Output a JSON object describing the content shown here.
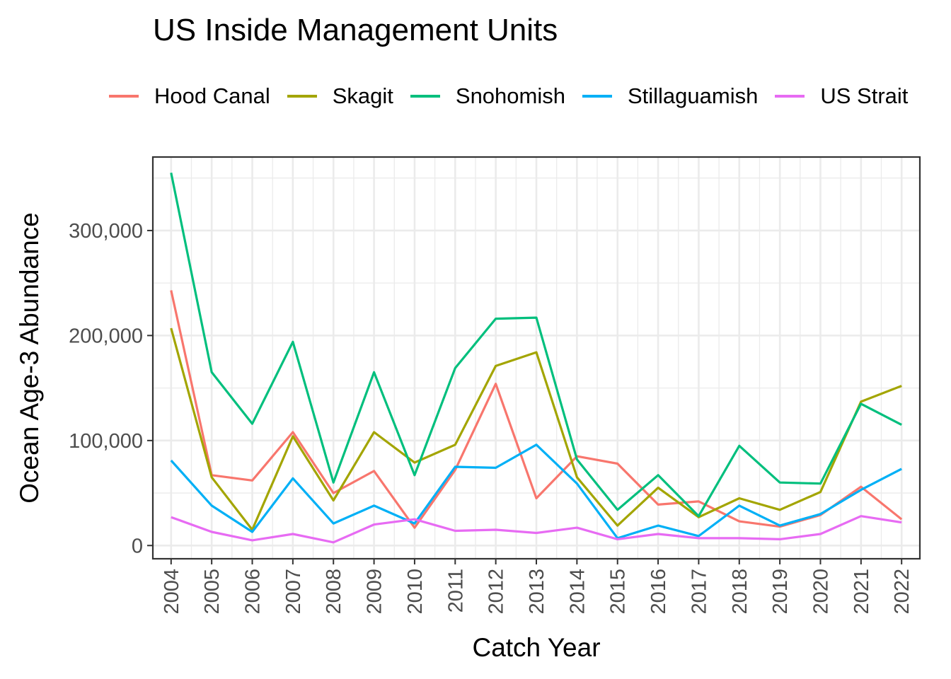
{
  "chart_data": {
    "type": "line",
    "title": "US Inside Management Units",
    "xlabel": "Catch Year",
    "ylabel": "Ocean Age-3 Abundance",
    "x": [
      2004,
      2005,
      2006,
      2007,
      2008,
      2009,
      2010,
      2011,
      2012,
      2013,
      2014,
      2015,
      2016,
      2017,
      2018,
      2019,
      2020,
      2021,
      2022
    ],
    "xlim": [
      2003.55,
      2022.45
    ],
    "ylim": [
      -12600,
      370000
    ],
    "yticks": [
      0,
      100000,
      200000,
      300000
    ],
    "ytick_labels": [
      "0",
      "100,000",
      "200,000",
      "300,000"
    ],
    "grid": true,
    "legend_position": "top",
    "series": [
      {
        "name": "Hood Canal",
        "color": "#F8766D",
        "values": [
          243000,
          67000,
          62000,
          108000,
          50000,
          71000,
          17000,
          72000,
          154000,
          45000,
          85000,
          78000,
          39000,
          42000,
          23000,
          18000,
          29000,
          56000,
          25000
        ]
      },
      {
        "name": "Skagit",
        "color": "#A3A500",
        "values": [
          207000,
          65000,
          15000,
          104000,
          43000,
          108000,
          79000,
          96000,
          171000,
          184000,
          65000,
          19000,
          55000,
          27000,
          45000,
          34000,
          51000,
          137000,
          152000
        ]
      },
      {
        "name": "Snohomish",
        "color": "#00BF7D",
        "values": [
          355000,
          165000,
          116000,
          194000,
          60000,
          165000,
          67000,
          169000,
          216000,
          217000,
          82000,
          34000,
          67000,
          28000,
          95000,
          60000,
          59000,
          135000,
          115000
        ]
      },
      {
        "name": "Stillaguamish",
        "color": "#00B0F6",
        "values": [
          81000,
          38000,
          13000,
          64000,
          21000,
          38000,
          21000,
          75000,
          74000,
          96000,
          59000,
          7000,
          19000,
          9000,
          38000,
          19000,
          30000,
          53000,
          73000
        ]
      },
      {
        "name": "US Strait",
        "color": "#E76BF3",
        "values": [
          27000,
          13000,
          5000,
          11000,
          3000,
          20000,
          25000,
          14000,
          15000,
          12000,
          17000,
          6000,
          11000,
          7000,
          7000,
          6000,
          11000,
          28000,
          22000
        ]
      }
    ]
  }
}
